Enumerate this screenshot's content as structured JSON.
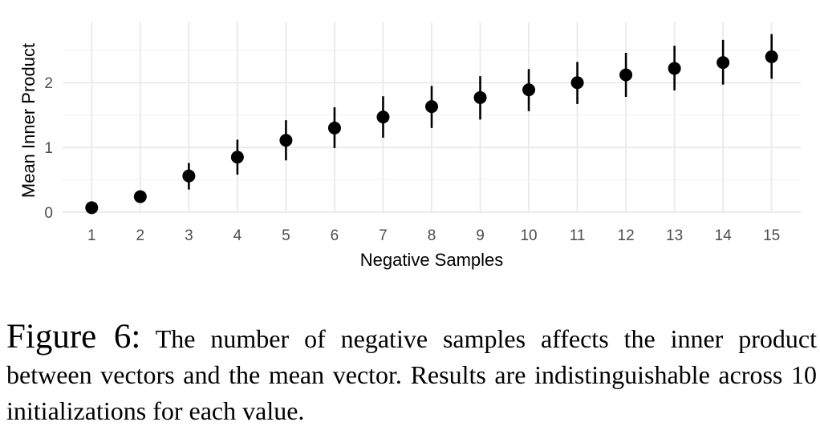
{
  "chart_data": {
    "type": "scatter",
    "xlabel": "Negative Samples",
    "ylabel": "Mean Inner Product",
    "x": [
      1,
      2,
      3,
      4,
      5,
      6,
      7,
      8,
      9,
      10,
      11,
      12,
      13,
      14,
      15
    ],
    "x_ticks": [
      "1",
      "2",
      "3",
      "4",
      "5",
      "6",
      "7",
      "8",
      "9",
      "10",
      "11",
      "12",
      "13",
      "14",
      "15"
    ],
    "y_ticks": [
      "0",
      "1",
      "2"
    ],
    "y_tick_values": [
      0,
      1,
      2
    ],
    "series": [
      {
        "values": [
          0.07,
          0.24,
          0.56,
          0.85,
          1.11,
          1.3,
          1.47,
          1.63,
          1.77,
          1.89,
          2.0,
          2.12,
          2.22,
          2.31,
          2.4
        ],
        "lower": [
          0.07,
          0.24,
          0.35,
          0.58,
          0.8,
          0.99,
          1.15,
          1.3,
          1.43,
          1.56,
          1.67,
          1.78,
          1.88,
          1.97,
          2.06
        ],
        "upper": [
          0.07,
          0.24,
          0.76,
          1.12,
          1.42,
          1.62,
          1.79,
          1.95,
          2.1,
          2.21,
          2.32,
          2.46,
          2.57,
          2.66,
          2.75
        ]
      }
    ],
    "xlim": [
      0.4,
      15.6
    ],
    "ylim": [
      0,
      2.93
    ],
    "grid": true,
    "marker_color": "#000000"
  },
  "caption": {
    "label": "Figure 6:",
    "text": " The number of negative samples affects the inner product between vectors and the mean vector.  Results are indistinguishable across 10 initializations for each value."
  }
}
